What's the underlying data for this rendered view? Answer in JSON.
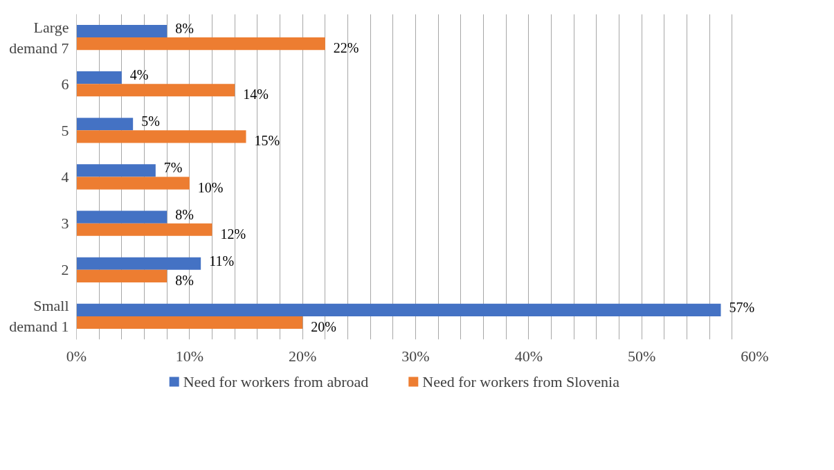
{
  "chart_data": {
    "type": "bar",
    "orientation": "horizontal",
    "categories": [
      "Large demand 7",
      "6",
      "5",
      "4",
      "3",
      "2",
      "Small demand 1"
    ],
    "series": [
      {
        "name": "Need for workers from abroad",
        "color": "#4472c4",
        "values": [
          8,
          4,
          5,
          7,
          8,
          11,
          57
        ],
        "value_labels": [
          "8%",
          "4%",
          "5%",
          "7%",
          "8%",
          "11%",
          "57%"
        ]
      },
      {
        "name": "Need for workers from Slovenia",
        "color": "#ed7d31",
        "values": [
          22,
          14,
          15,
          10,
          12,
          8,
          20
        ],
        "value_labels": [
          "22%",
          "14%",
          "15%",
          "10%",
          "12%",
          "8%",
          "20%"
        ]
      }
    ],
    "xlim": [
      0,
      60
    ],
    "xticks": [
      {
        "value": 0,
        "label": "0%"
      },
      {
        "value": 2,
        "label": null
      },
      {
        "value": 4,
        "label": null
      },
      {
        "value": 6,
        "label": null
      },
      {
        "value": 8,
        "label": null
      },
      {
        "value": 10,
        "label": "10%"
      },
      {
        "value": 12,
        "label": null
      },
      {
        "value": 14,
        "label": null
      },
      {
        "value": 16,
        "label": null
      },
      {
        "value": 18,
        "label": null
      },
      {
        "value": 20,
        "label": "20%"
      },
      {
        "value": 22,
        "label": null
      },
      {
        "value": 24,
        "label": null
      },
      {
        "value": 26,
        "label": null
      },
      {
        "value": 28,
        "label": null
      },
      {
        "value": 30,
        "label": "30%"
      },
      {
        "value": 32,
        "label": null
      },
      {
        "value": 34,
        "label": null
      },
      {
        "value": 36,
        "label": null
      },
      {
        "value": 38,
        "label": null
      },
      {
        "value": 40,
        "label": "40%"
      },
      {
        "value": 42,
        "label": null
      },
      {
        "value": 44,
        "label": null
      },
      {
        "value": 46,
        "label": null
      },
      {
        "value": 48,
        "label": null
      },
      {
        "value": 50,
        "label": "50%"
      },
      {
        "value": 52,
        "label": null
      },
      {
        "value": 54,
        "label": null
      },
      {
        "value": 56,
        "label": null
      },
      {
        "value": 58,
        "label": null
      },
      {
        "value": 60,
        "label": "60%"
      }
    ],
    "grid": "x",
    "legend": "bottom"
  }
}
